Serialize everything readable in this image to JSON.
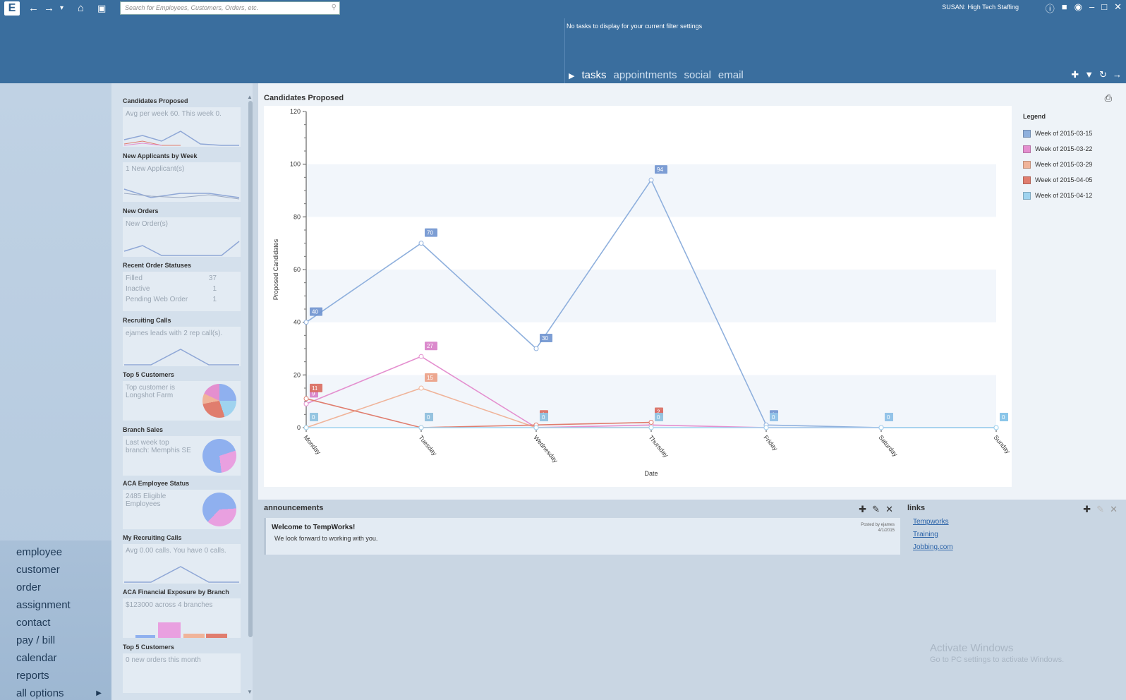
{
  "header": {
    "search_placeholder": "Search for Employees, Customers, Orders, etc.",
    "user": "SUSAN: High Tech Staffing",
    "no_tasks": "No tasks to display for your current filter settings",
    "tabs": [
      "tasks",
      "appointments",
      "social",
      "email"
    ]
  },
  "nav": {
    "items": [
      "employee",
      "customer",
      "order",
      "assignment",
      "contact",
      "pay / bill",
      "calendar",
      "reports",
      "all options"
    ]
  },
  "widgets": [
    {
      "title": "Candidates Proposed",
      "text": "Avg per week 60. This week 0."
    },
    {
      "title": "New Applicants by Week",
      "text": "1 New Applicant(s)"
    },
    {
      "title": "New Orders",
      "text": "New Order(s)"
    },
    {
      "title": "Recent Order Statuses",
      "rows": [
        [
          "Filled",
          "37"
        ],
        [
          "Inactive",
          "1"
        ],
        [
          "Pending Web Order",
          "1"
        ]
      ]
    },
    {
      "title": "Recruiting Calls",
      "text": "ejames leads with 2 rep call(s)."
    },
    {
      "title": "Top 5 Customers",
      "text": "Top customer is Longshot Farm"
    },
    {
      "title": "Branch Sales",
      "text": "Last week top branch: Memphis SE"
    },
    {
      "title": "ACA Employee Status",
      "text": "2485 Eligible Employees"
    },
    {
      "title": "My Recruiting Calls",
      "text": "Avg 0.00 calls. You have 0 calls."
    },
    {
      "title": "ACA Financial Exposure by Branch",
      "text": "$123000 across 4 branches"
    },
    {
      "title": "Top 5 Customers",
      "text": "0 new orders this month"
    }
  ],
  "main": {
    "title": "Candidates Proposed"
  },
  "chart_data": {
    "type": "line",
    "title": "Candidates Proposed",
    "xlabel": "Date",
    "ylabel": "Proposed Candidates",
    "categories": [
      "Monday",
      "Tuesday",
      "Wednesday",
      "Thursday",
      "Friday",
      "Saturday",
      "Sunday"
    ],
    "ylim": [
      0,
      120
    ],
    "yticks": [
      0,
      20,
      40,
      60,
      80,
      100,
      120
    ],
    "legend_title": "Legend",
    "legend_position": "right",
    "series": [
      {
        "name": "Week of 2015-03-15",
        "color": "#8fb0dd",
        "label_color": "#6f93cf",
        "values": [
          40,
          70,
          30,
          94,
          1,
          0,
          0
        ]
      },
      {
        "name": "Week of 2015-03-22",
        "color": "#e48fcf",
        "label_color": "#d77dc7",
        "values": [
          9,
          27,
          0,
          1,
          0,
          0,
          null
        ]
      },
      {
        "name": "Week of 2015-03-29",
        "color": "#f0b49a",
        "label_color": "#eb9f84",
        "values": [
          0,
          15,
          0,
          0,
          null,
          null,
          null
        ]
      },
      {
        "name": "Week of 2015-04-05",
        "color": "#e07d6e",
        "label_color": "#d96b5e",
        "values": [
          11,
          0,
          1,
          2,
          null,
          null,
          null
        ]
      },
      {
        "name": "Week of 2015-04-12",
        "color": "#9fd3ef",
        "label_color": "#8dcaeb",
        "values": [
          0,
          0,
          0,
          0,
          0,
          0,
          0
        ]
      }
    ]
  },
  "announcements": {
    "title": "announcements",
    "item_title": "Welcome to TempWorks!",
    "item_message": "We look forward to working with you.",
    "posted_by": "Posted by ejames",
    "posted_date": "4/1/2015"
  },
  "links": {
    "title": "links",
    "items": [
      "Tempworks",
      "Training",
      "Jobbing.com"
    ]
  },
  "watermark": {
    "line1": "Activate Windows",
    "line2": "Go to PC settings to activate Windows."
  }
}
